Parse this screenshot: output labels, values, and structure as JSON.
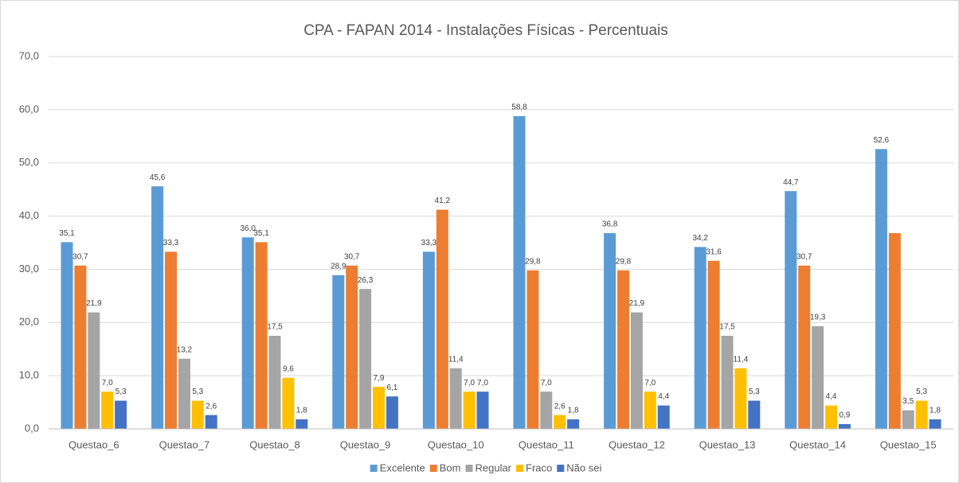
{
  "chart_data": {
    "type": "bar",
    "title": "CPA - FAPAN 2014 - Instalações Físicas - Percentuais",
    "categories": [
      "Questao_6",
      "Questao_7",
      "Questao_8",
      "Questao_9",
      "Questao_10",
      "Questao_11",
      "Questao_12",
      "Questao_13",
      "Questao_14",
      "Questao_15"
    ],
    "series": [
      {
        "name": "Excelente",
        "color": "#5b9bd5",
        "values": [
          35.1,
          45.6,
          36.0,
          28.9,
          33.3,
          58.8,
          36.8,
          34.2,
          44.7,
          52.6
        ],
        "value_labels": [
          "35,1",
          "45,6",
          "36,0",
          "28,9",
          "33,3",
          "58,8",
          "36,8",
          "34,2",
          "44,7",
          "52,6"
        ]
      },
      {
        "name": "Bom",
        "color": "#ed7d31",
        "values": [
          30.7,
          33.3,
          35.1,
          30.7,
          41.2,
          29.8,
          29.8,
          31.6,
          30.7,
          36.8
        ],
        "value_labels": [
          "30,7",
          "33,3",
          "35,1",
          "30,7",
          "41,2",
          "29,8",
          "29,8",
          "31,6",
          "30,7",
          null
        ]
      },
      {
        "name": "Regular",
        "color": "#a5a5a5",
        "values": [
          21.9,
          13.2,
          17.5,
          26.3,
          11.4,
          7.0,
          21.9,
          17.5,
          19.3,
          3.5
        ],
        "value_labels": [
          "21,9",
          "13,2",
          "17,5",
          "26,3",
          "11,4",
          "7,0",
          "21,9",
          "17,5",
          "19,3",
          "3,5"
        ]
      },
      {
        "name": "Fraco",
        "color": "#ffc000",
        "values": [
          7.0,
          5.3,
          9.6,
          7.9,
          7.0,
          2.6,
          7.0,
          11.4,
          4.4,
          5.3
        ],
        "value_labels": [
          "7,0",
          "5,3",
          "9,6",
          "7,9",
          "7,0",
          "2,6",
          "7,0",
          "11,4",
          "4,4",
          "5,3"
        ]
      },
      {
        "name": "Não sei",
        "color": "#4472c4",
        "values": [
          5.3,
          2.6,
          1.8,
          6.1,
          7.0,
          1.8,
          4.4,
          5.3,
          0.9,
          1.8
        ],
        "value_labels": [
          "5,3",
          "2,6",
          "1,8",
          "6,1",
          "7,0",
          "1,8",
          "4,4",
          "5,3",
          "0,9",
          "1,8"
        ]
      }
    ],
    "ylim": [
      0,
      70
    ],
    "yticks": [
      {
        "value": 0,
        "label": "0,0"
      },
      {
        "value": 10,
        "label": "10,0"
      },
      {
        "value": 20,
        "label": "20,0"
      },
      {
        "value": 30,
        "label": "30,0"
      },
      {
        "value": 40,
        "label": "40,0"
      },
      {
        "value": 50,
        "label": "50,0"
      },
      {
        "value": 60,
        "label": "60,0"
      },
      {
        "value": 70,
        "label": "70,0"
      }
    ],
    "grid": true,
    "legend": "bottom"
  }
}
